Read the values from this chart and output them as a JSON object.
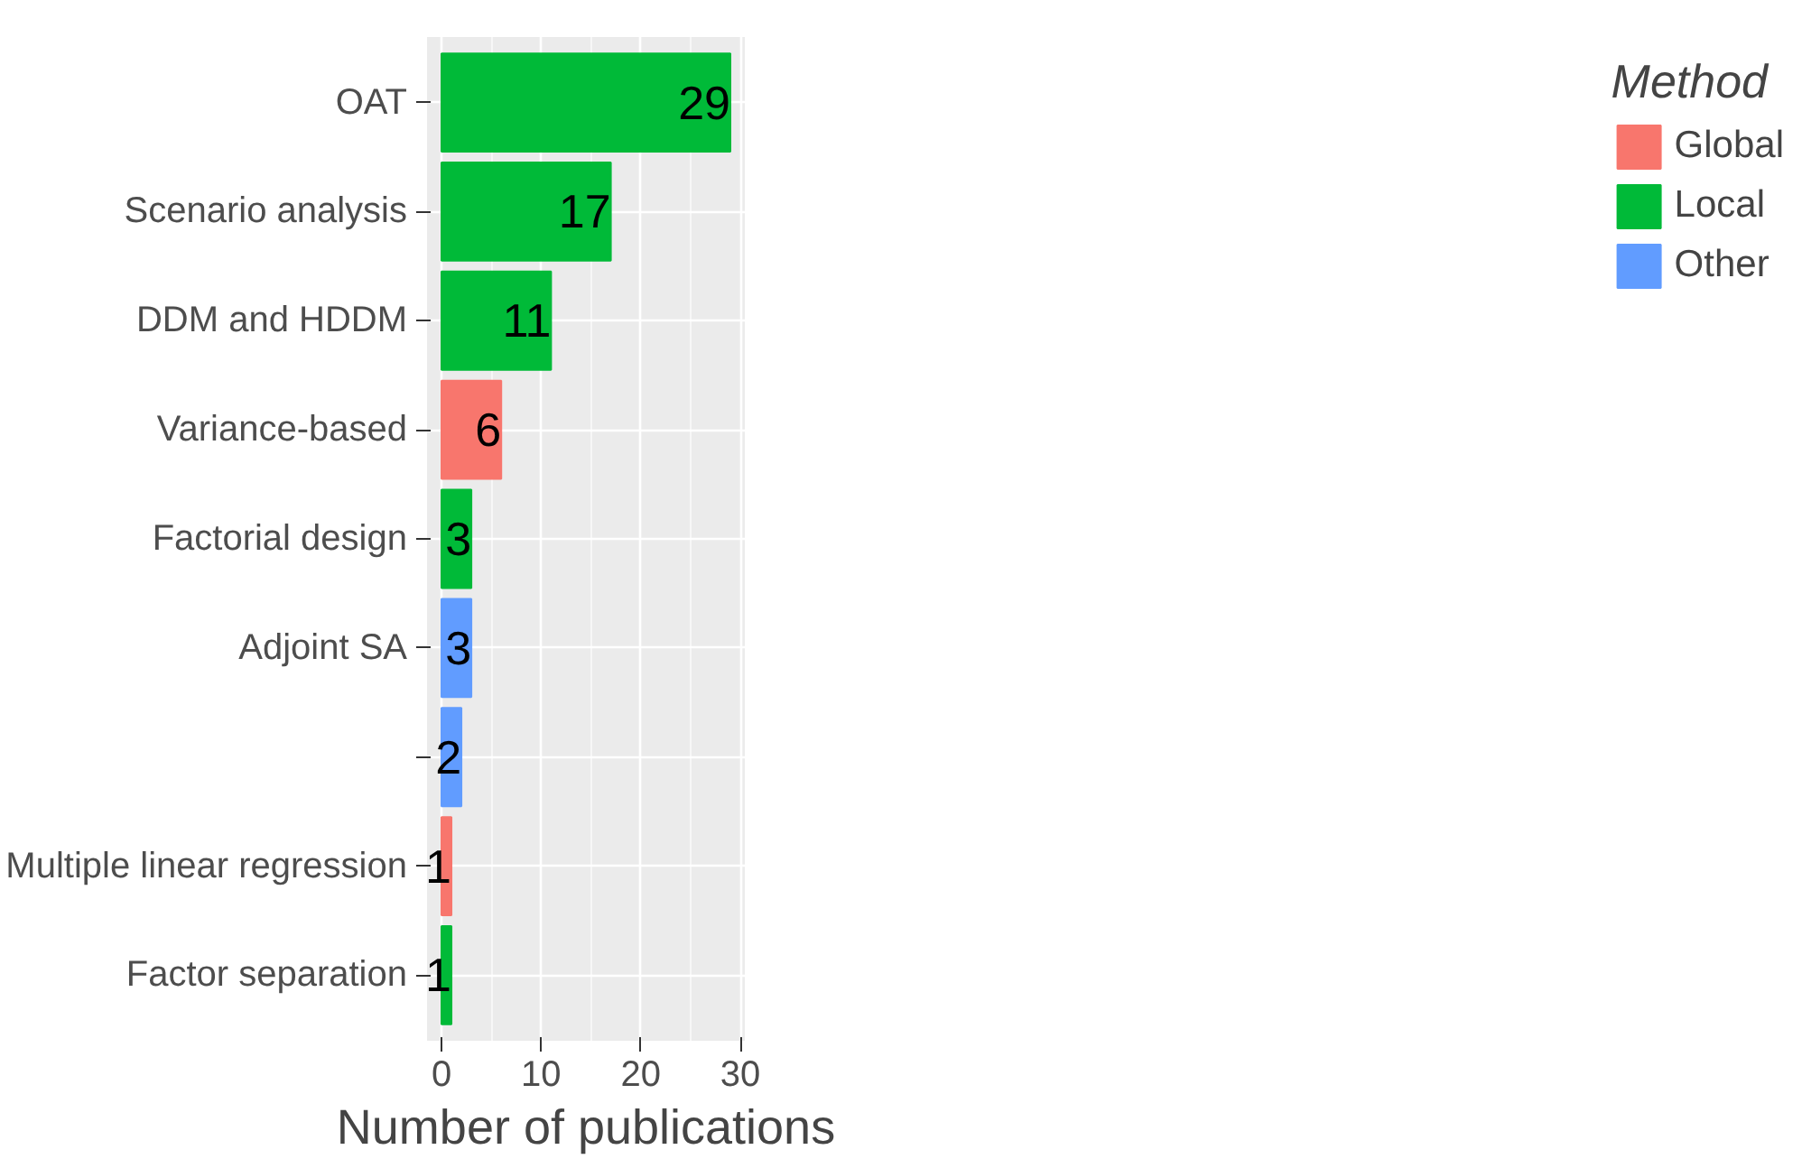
{
  "chart_data": {
    "type": "bar",
    "orientation": "horizontal",
    "xlabel": "Number of publications",
    "legend_title": "Method",
    "legend": "right",
    "grid": true,
    "data_labels": true,
    "categories": [
      "OAT",
      "Scenario analysis",
      "DDM and HDDM",
      "Variance-based",
      "Factorial design",
      "Adjoint SA",
      null,
      "Multiple linear regression",
      "Factor separation"
    ],
    "xlim": [
      -1.45,
      30.45
    ],
    "xticks": [
      0,
      10,
      20,
      30
    ],
    "series": [
      {
        "name": "Global",
        "color": "#f8766d",
        "values": [
          null,
          null,
          null,
          6,
          null,
          null,
          null,
          1,
          null
        ]
      },
      {
        "name": "Local",
        "color": "#00ba38",
        "values": [
          29,
          17,
          11,
          null,
          3,
          null,
          null,
          null,
          1
        ]
      },
      {
        "name": "Other",
        "color": "#619cff",
        "values": [
          null,
          null,
          null,
          null,
          null,
          3,
          2,
          null,
          null
        ]
      }
    ]
  }
}
